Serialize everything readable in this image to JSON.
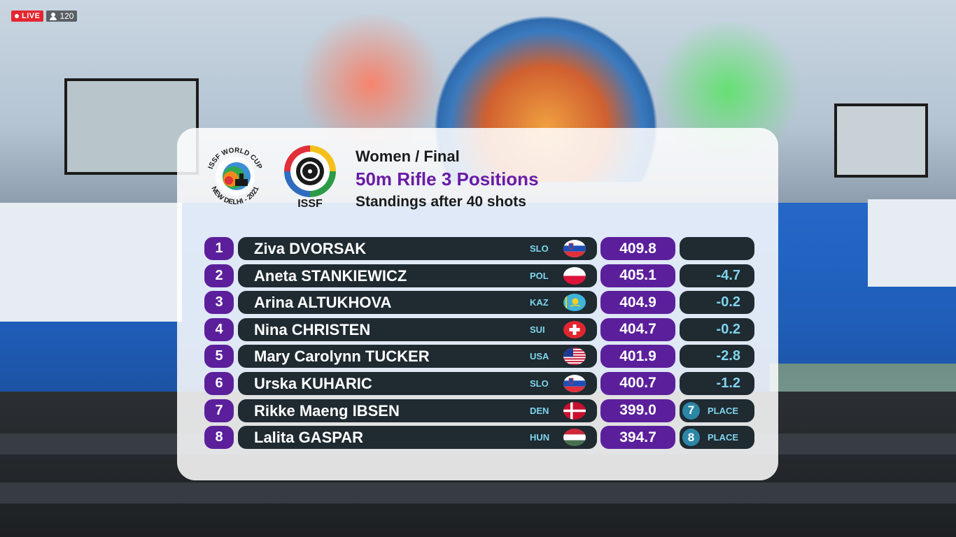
{
  "stream": {
    "live_label": "LIVE",
    "viewer_count": "120"
  },
  "logos": {
    "world_cup_top": "ISSF WORLD CUP",
    "world_cup_bottom": "NEW DELHI - 2021",
    "issf": "ISSF"
  },
  "header": {
    "gender_stage": "Women / Final",
    "event": "50m Rifle 3 Positions",
    "standings": "Standings after 40 shots"
  },
  "colors": {
    "rank_purple": "#5c1f9c",
    "row_dark": "#1f2a31",
    "event_title": "#6a1ba8",
    "accent_cyan": "#7fd4ec",
    "live_red": "#e4262e"
  },
  "standings": [
    {
      "rank": "1",
      "name": "Ziva DVORSAK",
      "noc": "SLO",
      "flag": "slo",
      "score": "409.8",
      "diff": "",
      "place": ""
    },
    {
      "rank": "2",
      "name": "Aneta STANKIEWICZ",
      "noc": "POL",
      "flag": "pol",
      "score": "405.1",
      "diff": "-4.7",
      "place": ""
    },
    {
      "rank": "3",
      "name": "Arina ALTUKHOVA",
      "noc": "KAZ",
      "flag": "kaz",
      "score": "404.9",
      "diff": "-0.2",
      "place": ""
    },
    {
      "rank": "4",
      "name": "Nina CHRISTEN",
      "noc": "SUI",
      "flag": "sui",
      "score": "404.7",
      "diff": "-0.2",
      "place": ""
    },
    {
      "rank": "5",
      "name": "Mary Carolynn TUCKER",
      "noc": "USA",
      "flag": "usa",
      "score": "401.9",
      "diff": "-2.8",
      "place": ""
    },
    {
      "rank": "6",
      "name": "Urska KUHARIC",
      "noc": "SLO",
      "flag": "slo",
      "score": "400.7",
      "diff": "-1.2",
      "place": ""
    },
    {
      "rank": "7",
      "name": "Rikke Maeng IBSEN",
      "noc": "DEN",
      "flag": "den",
      "score": "399.0",
      "diff": "",
      "place": "7",
      "place_label": "PLACE"
    },
    {
      "rank": "8",
      "name": "Lalita GASPAR",
      "noc": "HUN",
      "flag": "hun",
      "score": "394.7",
      "diff": "",
      "place": "8",
      "place_label": "PLACE"
    }
  ]
}
